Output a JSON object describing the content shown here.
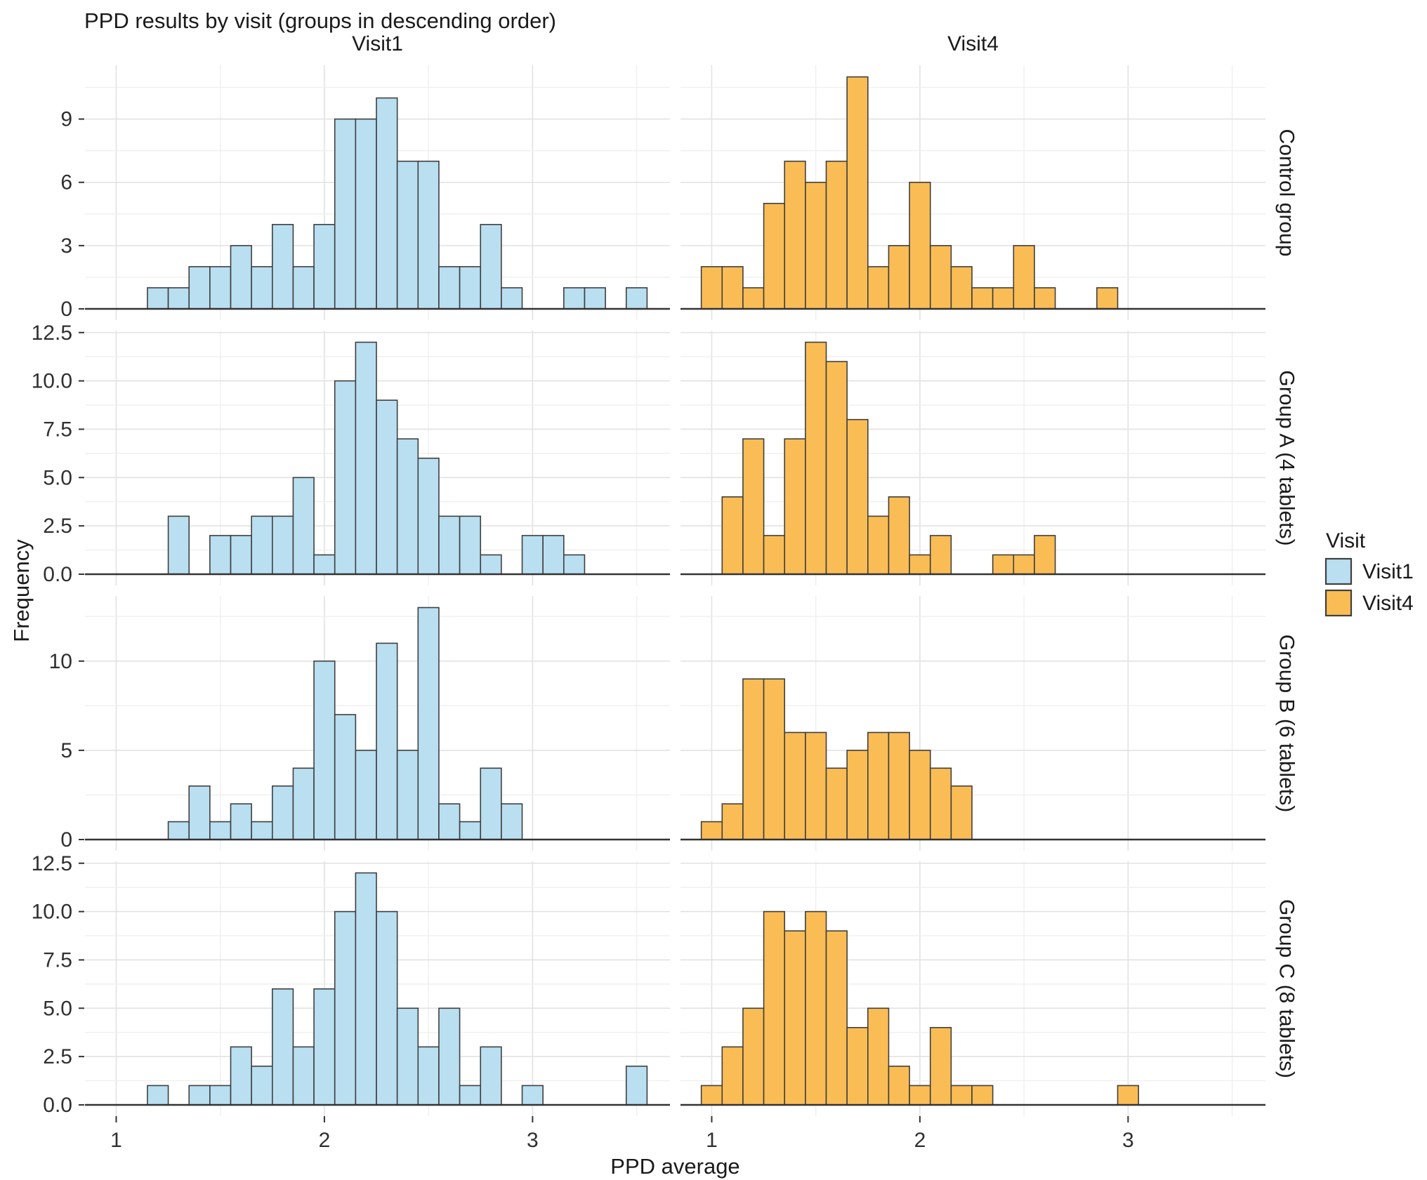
{
  "header": {
    "title": "PPD results by visit (groups in descending order)"
  },
  "axes": {
    "x_label": "PPD average",
    "y_label": "Frequency"
  },
  "legend": {
    "title": "Visit",
    "entries": [
      {
        "label": "Visit1",
        "color": "#b9dff1"
      },
      {
        "label": "Visit4",
        "color": "#fabd55"
      }
    ]
  },
  "colors": {
    "visit1_fill": "#b9dff1",
    "visit4_fill": "#fabd55",
    "bar_edge": "#3f3f3f",
    "axis_line": "#333333",
    "grid_major": "#e2e2e2",
    "grid_minor": "#efefef",
    "tick_text": "#303030",
    "title_text": "#1a1a1a"
  },
  "chart_data": {
    "type": "bar",
    "subtype": "faceted-histogram",
    "title": "PPD results by visit (groups in descending order)",
    "xlabel": "PPD average",
    "ylabel": "Frequency",
    "binwidth": 0.1,
    "x_range": [
      0.85,
      3.66
    ],
    "x_major_ticks": [
      {
        "v": 1,
        "label": "1"
      },
      {
        "v": 2,
        "label": "2"
      },
      {
        "v": 3,
        "label": "3"
      }
    ],
    "x_minor_gridlines": [
      1.5,
      2.5,
      3.5
    ],
    "grid": true,
    "legend_position": "right",
    "columns": [
      {
        "label": "Visit1",
        "color": "#b9dff1"
      },
      {
        "label": "Visit4",
        "color": "#fabd55"
      }
    ],
    "rows": [
      {
        "label": "Control group",
        "y_max_data": 11,
        "y_ticks": [
          {
            "v": 0,
            "label": "0"
          },
          {
            "v": 3,
            "label": "3"
          },
          {
            "v": 6,
            "label": "6"
          },
          {
            "v": 9,
            "label": "9"
          }
        ],
        "y_minor": [
          1.5,
          4.5,
          7.5,
          10.5
        ]
      },
      {
        "label": "Group A (4 tablets)",
        "y_max_data": 12,
        "y_ticks": [
          {
            "v": 0,
            "label": "0.0"
          },
          {
            "v": 2.5,
            "label": "2.5"
          },
          {
            "v": 5,
            "label": "5.0"
          },
          {
            "v": 7.5,
            "label": "7.5"
          },
          {
            "v": 10,
            "label": "10.0"
          },
          {
            "v": 12.5,
            "label": "12.5"
          }
        ],
        "y_minor": [
          1.25,
          3.75,
          6.25,
          8.75,
          11.25
        ]
      },
      {
        "label": "Group B (6 tablets)",
        "y_max_data": 13,
        "y_ticks": [
          {
            "v": 0,
            "label": "0"
          },
          {
            "v": 5,
            "label": "5"
          },
          {
            "v": 10,
            "label": "10"
          }
        ],
        "y_minor": [
          2.5,
          7.5,
          12.5
        ]
      },
      {
        "label": "Group C (8 tablets)",
        "y_max_data": 12,
        "y_ticks": [
          {
            "v": 0,
            "label": "0.0"
          },
          {
            "v": 2.5,
            "label": "2.5"
          },
          {
            "v": 5,
            "label": "5.0"
          },
          {
            "v": 7.5,
            "label": "7.5"
          },
          {
            "v": 10,
            "label": "10.0"
          },
          {
            "v": 12.5,
            "label": "12.5"
          }
        ],
        "y_minor": [
          1.25,
          3.75,
          6.25,
          8.75,
          11.25
        ]
      }
    ],
    "panels": [
      {
        "row": 0,
        "col": 0,
        "visit": "Visit1",
        "bins": [
          [
            1.2,
            1
          ],
          [
            1.3,
            1
          ],
          [
            1.4,
            2
          ],
          [
            1.5,
            2
          ],
          [
            1.6,
            3
          ],
          [
            1.7,
            2
          ],
          [
            1.8,
            4
          ],
          [
            1.9,
            2
          ],
          [
            2.0,
            4
          ],
          [
            2.1,
            9
          ],
          [
            2.2,
            9
          ],
          [
            2.3,
            10
          ],
          [
            2.4,
            7
          ],
          [
            2.5,
            7
          ],
          [
            2.6,
            2
          ],
          [
            2.7,
            2
          ],
          [
            2.8,
            4
          ],
          [
            2.9,
            1
          ],
          [
            3.2,
            1
          ],
          [
            3.3,
            1
          ],
          [
            3.5,
            1
          ]
        ]
      },
      {
        "row": 0,
        "col": 1,
        "visit": "Visit4",
        "bins": [
          [
            1.0,
            2
          ],
          [
            1.1,
            2
          ],
          [
            1.2,
            1
          ],
          [
            1.3,
            5
          ],
          [
            1.4,
            7
          ],
          [
            1.5,
            6
          ],
          [
            1.6,
            7
          ],
          [
            1.7,
            11
          ],
          [
            1.8,
            2
          ],
          [
            1.9,
            3
          ],
          [
            2.0,
            6
          ],
          [
            2.1,
            3
          ],
          [
            2.2,
            2
          ],
          [
            2.3,
            1
          ],
          [
            2.4,
            1
          ],
          [
            2.5,
            3
          ],
          [
            2.6,
            1
          ],
          [
            2.9,
            1
          ]
        ]
      },
      {
        "row": 1,
        "col": 0,
        "visit": "Visit1",
        "bins": [
          [
            1.3,
            3
          ],
          [
            1.5,
            2
          ],
          [
            1.6,
            2
          ],
          [
            1.7,
            3
          ],
          [
            1.8,
            3
          ],
          [
            1.9,
            5
          ],
          [
            2.0,
            1
          ],
          [
            2.1,
            10
          ],
          [
            2.2,
            12
          ],
          [
            2.3,
            9
          ],
          [
            2.4,
            7
          ],
          [
            2.5,
            6
          ],
          [
            2.6,
            3
          ],
          [
            2.7,
            3
          ],
          [
            2.8,
            1
          ],
          [
            3.0,
            2
          ],
          [
            3.1,
            2
          ],
          [
            3.2,
            1
          ]
        ]
      },
      {
        "row": 1,
        "col": 1,
        "visit": "Visit4",
        "bins": [
          [
            1.1,
            4
          ],
          [
            1.2,
            7
          ],
          [
            1.3,
            2
          ],
          [
            1.4,
            7
          ],
          [
            1.5,
            12
          ],
          [
            1.6,
            11
          ],
          [
            1.7,
            8
          ],
          [
            1.8,
            3
          ],
          [
            1.9,
            4
          ],
          [
            2.0,
            1
          ],
          [
            2.1,
            2
          ],
          [
            2.4,
            1
          ],
          [
            2.5,
            1
          ],
          [
            2.6,
            2
          ]
        ]
      },
      {
        "row": 2,
        "col": 0,
        "visit": "Visit1",
        "bins": [
          [
            1.3,
            1
          ],
          [
            1.4,
            3
          ],
          [
            1.5,
            1
          ],
          [
            1.6,
            2
          ],
          [
            1.7,
            1
          ],
          [
            1.8,
            3
          ],
          [
            1.9,
            4
          ],
          [
            2.0,
            10
          ],
          [
            2.1,
            7
          ],
          [
            2.2,
            5
          ],
          [
            2.3,
            11
          ],
          [
            2.4,
            5
          ],
          [
            2.5,
            13
          ],
          [
            2.6,
            2
          ],
          [
            2.7,
            1
          ],
          [
            2.8,
            4
          ],
          [
            2.9,
            2
          ]
        ]
      },
      {
        "row": 2,
        "col": 1,
        "visit": "Visit4",
        "bins": [
          [
            1.0,
            1
          ],
          [
            1.1,
            2
          ],
          [
            1.2,
            9
          ],
          [
            1.3,
            9
          ],
          [
            1.4,
            6
          ],
          [
            1.5,
            6
          ],
          [
            1.6,
            4
          ],
          [
            1.7,
            5
          ],
          [
            1.8,
            6
          ],
          [
            1.9,
            6
          ],
          [
            2.0,
            5
          ],
          [
            2.1,
            4
          ],
          [
            2.2,
            3
          ]
        ]
      },
      {
        "row": 3,
        "col": 0,
        "visit": "Visit1",
        "bins": [
          [
            1.2,
            1
          ],
          [
            1.4,
            1
          ],
          [
            1.5,
            1
          ],
          [
            1.6,
            3
          ],
          [
            1.7,
            2
          ],
          [
            1.8,
            6
          ],
          [
            1.9,
            3
          ],
          [
            2.0,
            6
          ],
          [
            2.1,
            10
          ],
          [
            2.2,
            12
          ],
          [
            2.3,
            10
          ],
          [
            2.4,
            5
          ],
          [
            2.5,
            3
          ],
          [
            2.6,
            5
          ],
          [
            2.7,
            1
          ],
          [
            2.8,
            3
          ],
          [
            3.0,
            1
          ],
          [
            3.5,
            2
          ]
        ]
      },
      {
        "row": 3,
        "col": 1,
        "visit": "Visit4",
        "bins": [
          [
            1.0,
            1
          ],
          [
            1.1,
            3
          ],
          [
            1.2,
            5
          ],
          [
            1.3,
            10
          ],
          [
            1.4,
            9
          ],
          [
            1.5,
            10
          ],
          [
            1.6,
            9
          ],
          [
            1.7,
            4
          ],
          [
            1.8,
            5
          ],
          [
            1.9,
            2
          ],
          [
            2.0,
            1
          ],
          [
            2.1,
            4
          ],
          [
            2.2,
            1
          ],
          [
            2.3,
            1
          ],
          [
            3.0,
            1
          ]
        ]
      }
    ]
  }
}
